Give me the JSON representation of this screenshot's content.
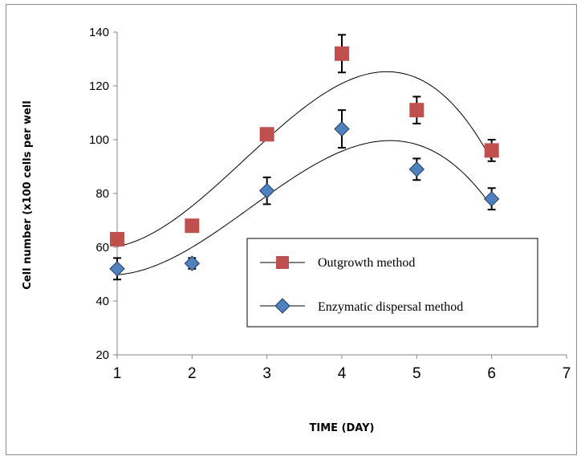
{
  "chart_data": {
    "type": "scatter",
    "title": "",
    "xlabel": "TIME (DAY)",
    "ylabel": "Cell number (x100 cells per well",
    "xlim": [
      1,
      7
    ],
    "ylim": [
      20,
      140
    ],
    "xticks": [
      "1",
      "2",
      "3",
      "4",
      "5",
      "6",
      "7"
    ],
    "yticks": [
      "20",
      "40",
      "60",
      "80",
      "100",
      "120",
      "140"
    ],
    "grid": false,
    "legend_position": "center-right",
    "series": [
      {
        "name": "Outgrowth method",
        "marker": "square",
        "color": "#c0504d",
        "x": [
          1,
          2,
          3,
          4,
          5,
          6
        ],
        "y": [
          63,
          68,
          102,
          132,
          111,
          96
        ],
        "error": [
          0,
          0,
          2,
          7,
          5,
          4
        ],
        "trendline": "polynomial"
      },
      {
        "name": "Enzymatic dispersal method",
        "marker": "diamond",
        "color": "#4f81bd",
        "x": [
          1,
          2,
          3,
          4,
          5,
          6
        ],
        "y": [
          52,
          54,
          81,
          104,
          89,
          78
        ],
        "error": [
          4,
          2,
          5,
          7,
          4,
          4
        ],
        "trendline": "polynomial"
      }
    ]
  }
}
